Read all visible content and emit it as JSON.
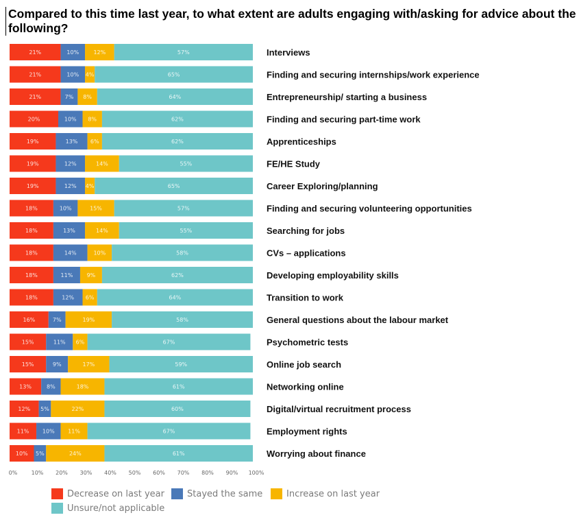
{
  "chart_data": {
    "type": "bar",
    "orientation": "horizontal",
    "stacked": true,
    "title": "Compared to this time last year, to what extent are adults engaging with/asking for advice about the following?",
    "categories": [
      "Interviews",
      "Finding and securing internships/work experience",
      "Entrepreneurship/ starting a business",
      "Finding and securing part-time work",
      "Apprenticeships",
      "FE/HE Study",
      "Career Exploring/planning",
      "Finding and securing volunteering opportunities",
      "Searching for jobs",
      "CVs – applications",
      "Developing employability skills",
      "Transition to work",
      "General questions about the labour market",
      "Psychometric tests",
      "Online job search",
      "Networking online",
      "Digital/virtual recruitment process",
      "Employment rights",
      "Worrying about finance"
    ],
    "series": [
      {
        "name": "Decrease on last year",
        "color": "#f5391c",
        "values": [
          21,
          21,
          21,
          20,
          19,
          19,
          19,
          18,
          18,
          18,
          18,
          18,
          16,
          15,
          15,
          13,
          12,
          11,
          10
        ]
      },
      {
        "name": "Stayed the same",
        "color": "#4a79b8",
        "values": [
          10,
          10,
          7,
          10,
          13,
          12,
          12,
          10,
          13,
          14,
          11,
          12,
          7,
          11,
          9,
          8,
          5,
          10,
          5
        ]
      },
      {
        "name": "Increase on last year",
        "color": "#f7b500",
        "values": [
          12,
          4,
          8,
          8,
          6,
          14,
          4,
          15,
          14,
          10,
          9,
          6,
          19,
          6,
          17,
          18,
          22,
          11,
          24
        ]
      },
      {
        "name": "Unsure/not applicable",
        "color": "#6ec6c8",
        "values": [
          57,
          65,
          64,
          62,
          62,
          55,
          65,
          57,
          55,
          58,
          62,
          64,
          58,
          67,
          59,
          61,
          60,
          67,
          61
        ]
      }
    ],
    "xlim": [
      0,
      100
    ],
    "xticks": [
      "0%",
      "10%",
      "20%",
      "30%",
      "40%",
      "50%",
      "60%",
      "70%",
      "80%",
      "90%",
      "100%"
    ],
    "value_suffix": "%",
    "legend_position": "bottom-left"
  }
}
